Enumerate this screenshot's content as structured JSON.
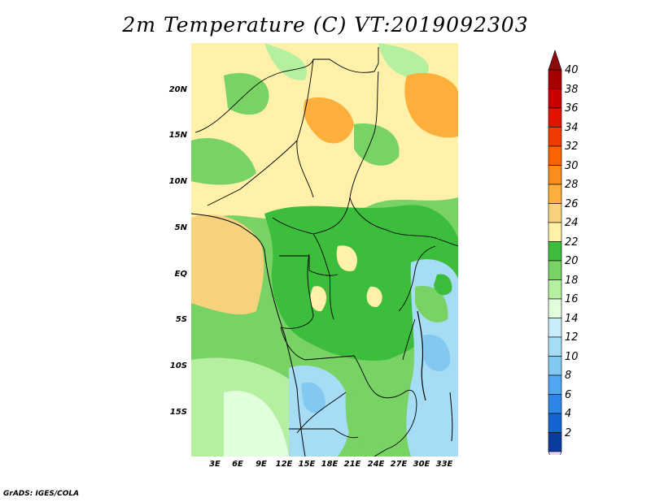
{
  "title": "2m Temperature (C) VT:2019092303",
  "credit": "GrADS: IGES/COLA",
  "lat_labels": [
    "20N",
    "15N",
    "10N",
    "5N",
    "EQ",
    "5S",
    "10S",
    "15S"
  ],
  "lon_labels": [
    "3E",
    "6E",
    "9E",
    "12E",
    "15E",
    "18E",
    "21E",
    "24E",
    "27E",
    "30E",
    "33E"
  ],
  "colorbar": {
    "labels": [
      "40",
      "38",
      "36",
      "34",
      "32",
      "30",
      "28",
      "26",
      "24",
      "22",
      "20",
      "18",
      "16",
      "14",
      "12",
      "10",
      "8",
      "6",
      "4",
      "2"
    ],
    "colors_top_to_bottom": [
      "#a50000",
      "#c80000",
      "#e11400",
      "#f03c00",
      "#fa6400",
      "#fb8c1e",
      "#fdaf3c",
      "#f6d27d",
      "#fff0aa",
      "#3cbe3c",
      "#78d264",
      "#b4f0a0",
      "#e1ffdc",
      "#c8eefa",
      "#a6dcf4",
      "#82c8f0",
      "#50a5f5",
      "#2d87e6",
      "#1464d2",
      "#0a3ca0"
    ],
    "top_arrow_color": "#8b0a0a",
    "bottom_arrow_color": "#e6d5f5"
  },
  "map_colors": {
    "land_24_26": "#fff0aa",
    "land_26_28": "#f6d27d",
    "land_28_30": "#fdaf3c",
    "land_22_24": "#3cbe3c",
    "land_20_22": "#78d264",
    "land_18_20": "#b4f0a0",
    "land_16_18": "#e1ffdc",
    "land_14_16": "#c8eefa",
    "land_12_14": "#a6dcf4",
    "land_10_12": "#82c8f0"
  }
}
